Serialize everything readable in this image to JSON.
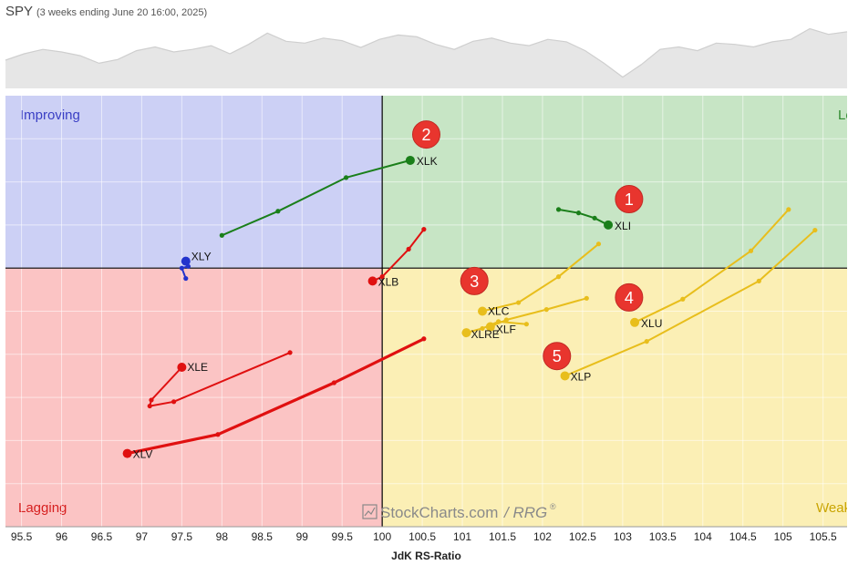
{
  "header": {
    "symbol": "SPY",
    "subtitle": "(3 weeks ending June 20 16:00, 2025)"
  },
  "watermark": {
    "text": "StockCharts.com",
    "suffix": "RRG",
    "reg": "®"
  },
  "chart_data": {
    "type": "scatter",
    "xlabel": "JdK RS-Ratio",
    "ylabel": "",
    "xlim": [
      95.3,
      105.8
    ],
    "ylim": [
      97.0,
      102.0
    ],
    "center": [
      100,
      100
    ],
    "x_ticks": [
      "95.5",
      "96",
      "96.5",
      "97",
      "97.5",
      "98",
      "98.5",
      "99",
      "99.5",
      "100",
      "100.5",
      "101",
      "101.5",
      "102",
      "102.5",
      "103",
      "103.5",
      "104",
      "104.5",
      "105",
      "105.5"
    ],
    "grid": true,
    "quadrants": [
      {
        "name": "Improving",
        "color": "#3a3fc4",
        "fill": "#ccd0f5"
      },
      {
        "name": "Leading",
        "color": "#2f8a2f",
        "fill": "#c7e5c5"
      },
      {
        "name": "Weakening",
        "color": "#c9a400",
        "fill": "#fbefb5"
      },
      {
        "name": "Lagging",
        "color": "#d62020",
        "fill": "#fbc4c4"
      }
    ],
    "series": [
      {
        "name": "XLK",
        "color": "#1a7f1a",
        "points": [
          [
            98.0,
            100.38
          ],
          [
            98.7,
            100.66
          ],
          [
            99.55,
            101.05
          ],
          [
            100.35,
            101.25
          ]
        ]
      },
      {
        "name": "XLI",
        "color": "#1a7f1a",
        "points": [
          [
            102.2,
            100.68
          ],
          [
            102.45,
            100.64
          ],
          [
            102.65,
            100.58
          ],
          [
            102.82,
            100.5
          ]
        ]
      },
      {
        "name": "XLY",
        "color": "#2233cc",
        "points": [
          [
            97.55,
            99.88
          ],
          [
            97.5,
            100.0
          ],
          [
            97.58,
            100.02
          ],
          [
            97.55,
            100.08
          ]
        ]
      },
      {
        "name": "XLB",
        "color": "#e01010",
        "points": [
          [
            100.52,
            100.45
          ],
          [
            100.33,
            100.22
          ],
          [
            100.0,
            99.9
          ],
          [
            99.88,
            99.85
          ]
        ]
      },
      {
        "name": "XLE",
        "color": "#e01010",
        "points": [
          [
            98.85,
            99.02
          ],
          [
            97.4,
            98.45
          ],
          [
            97.1,
            98.4
          ],
          [
            97.12,
            98.47
          ],
          [
            97.5,
            98.85
          ]
        ]
      },
      {
        "name": "XLV",
        "color": "#e01010",
        "points": [
          [
            100.52,
            99.18
          ],
          [
            99.4,
            98.67
          ],
          [
            97.95,
            98.07
          ],
          [
            96.82,
            97.85
          ]
        ]
      },
      {
        "name": "XLC",
        "color": "#e8be1c",
        "points": [
          [
            102.7,
            100.28
          ],
          [
            102.2,
            99.9
          ],
          [
            101.7,
            99.6
          ],
          [
            101.25,
            99.5
          ]
        ]
      },
      {
        "name": "XLF",
        "color": "#e8be1c",
        "points": [
          [
            102.55,
            99.65
          ],
          [
            102.05,
            99.52
          ],
          [
            101.55,
            99.4
          ],
          [
            101.35,
            99.32
          ]
        ]
      },
      {
        "name": "XLRE",
        "color": "#e8be1c",
        "points": [
          [
            101.8,
            99.35
          ],
          [
            101.45,
            99.38
          ],
          [
            101.25,
            99.3
          ],
          [
            101.05,
            99.25
          ]
        ]
      },
      {
        "name": "XLU",
        "color": "#e8be1c",
        "points": [
          [
            105.07,
            100.68
          ],
          [
            104.6,
            100.2
          ],
          [
            103.75,
            99.64
          ],
          [
            103.15,
            99.37
          ]
        ]
      },
      {
        "name": "XLP",
        "color": "#e8be1c",
        "points": [
          [
            105.4,
            100.44
          ],
          [
            104.7,
            99.85
          ],
          [
            103.3,
            99.15
          ],
          [
            102.28,
            98.75
          ]
        ]
      }
    ],
    "annotations": [
      {
        "label": "1",
        "at": [
          103.08,
          100.8
        ]
      },
      {
        "label": "2",
        "at": [
          100.55,
          101.55
        ]
      },
      {
        "label": "3",
        "at": [
          101.15,
          99.85
        ]
      },
      {
        "label": "4",
        "at": [
          103.08,
          99.66
        ]
      },
      {
        "label": "5",
        "at": [
          102.18,
          98.98
        ]
      }
    ],
    "benchmark_line": [
      0.45,
      0.55,
      0.62,
      0.58,
      0.52,
      0.4,
      0.46,
      0.6,
      0.66,
      0.58,
      0.62,
      0.68,
      0.55,
      0.7,
      0.88,
      0.75,
      0.72,
      0.8,
      0.76,
      0.65,
      0.78,
      0.85,
      0.82,
      0.7,
      0.62,
      0.75,
      0.8,
      0.72,
      0.68,
      0.78,
      0.74,
      0.6,
      0.4,
      0.18,
      0.38,
      0.62,
      0.66,
      0.6,
      0.72,
      0.7,
      0.66,
      0.74,
      0.78,
      0.95,
      0.86,
      0.9
    ]
  }
}
